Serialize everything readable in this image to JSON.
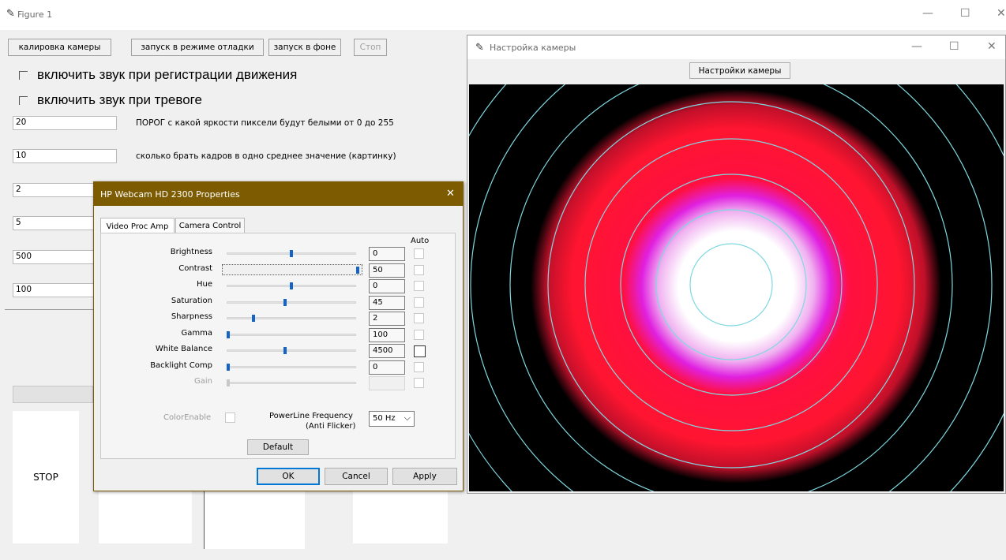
{
  "main_window": {
    "title": "Figure 1",
    "controls": {
      "minimize": "—",
      "maximize": "☐",
      "close": "✕"
    },
    "buttons": {
      "calibration": "калировка камеры",
      "debug_run": "запуск в режиме отладки",
      "bg_run": "запуск в фоне",
      "stop_top": "Стоп",
      "stop_big": "STOP"
    },
    "checkboxes": {
      "motion_sound": "включить звук при регистрации движения",
      "alarm_sound": "включить звук при тревоге"
    },
    "fields": [
      {
        "value": "20",
        "label": "ПОРОГ с какой яркости пиксели будут белыми от 0 до 255"
      },
      {
        "value": "10",
        "label": "сколько брать кадров в одно среднее значение (картинку)"
      },
      {
        "value": "2",
        "label": ""
      },
      {
        "value": "5",
        "label": ""
      },
      {
        "value": "500",
        "label": ""
      },
      {
        "value": "100",
        "label": ""
      }
    ]
  },
  "properties_dialog": {
    "title": "HP Webcam HD 2300 Properties",
    "close": "✕",
    "tabs": [
      "Video Proc Amp",
      "Camera Control"
    ],
    "auto_header": "Auto",
    "rows": [
      {
        "label": "Brightness",
        "value": "0",
        "level": 0.5,
        "enabled": true
      },
      {
        "label": "Contrast",
        "value": "50",
        "level": 1.0,
        "enabled": true
      },
      {
        "label": "Hue",
        "value": "0",
        "level": 0.5,
        "enabled": true
      },
      {
        "label": "Saturation",
        "value": "45",
        "level": 0.45,
        "enabled": true
      },
      {
        "label": "Sharpness",
        "value": "2",
        "level": 0.2,
        "enabled": true
      },
      {
        "label": "Gamma",
        "value": "100",
        "level": 0.0,
        "enabled": true
      },
      {
        "label": "White Balance",
        "value": "4500",
        "level": 0.45,
        "enabled": true
      },
      {
        "label": "Backlight Comp",
        "value": "0",
        "level": 0.0,
        "enabled": true
      },
      {
        "label": "Gain",
        "value": "",
        "level": 0.0,
        "enabled": false
      }
    ],
    "color_enable": "ColorEnable",
    "powerline_label_1": "PowerLine Frequency",
    "powerline_label_2": "(Anti Flicker)",
    "powerline_value": "50 Hz",
    "default_button": "Default",
    "ok_button": "OK",
    "cancel_button": "Cancel",
    "apply_button": "Apply"
  },
  "camera_window": {
    "title": "Настройка камеры",
    "controls": {
      "minimize": "—",
      "maximize": "☐",
      "close": "✕"
    },
    "settings_button": "Настройки камеры"
  },
  "colors": {
    "dialog_title_bg": "#7d5b00",
    "slider_thumb": "#1464c8",
    "ring_color": "#7fd8e0",
    "blob_red": "#ff1530",
    "blob_magenta": "#e020e0"
  }
}
